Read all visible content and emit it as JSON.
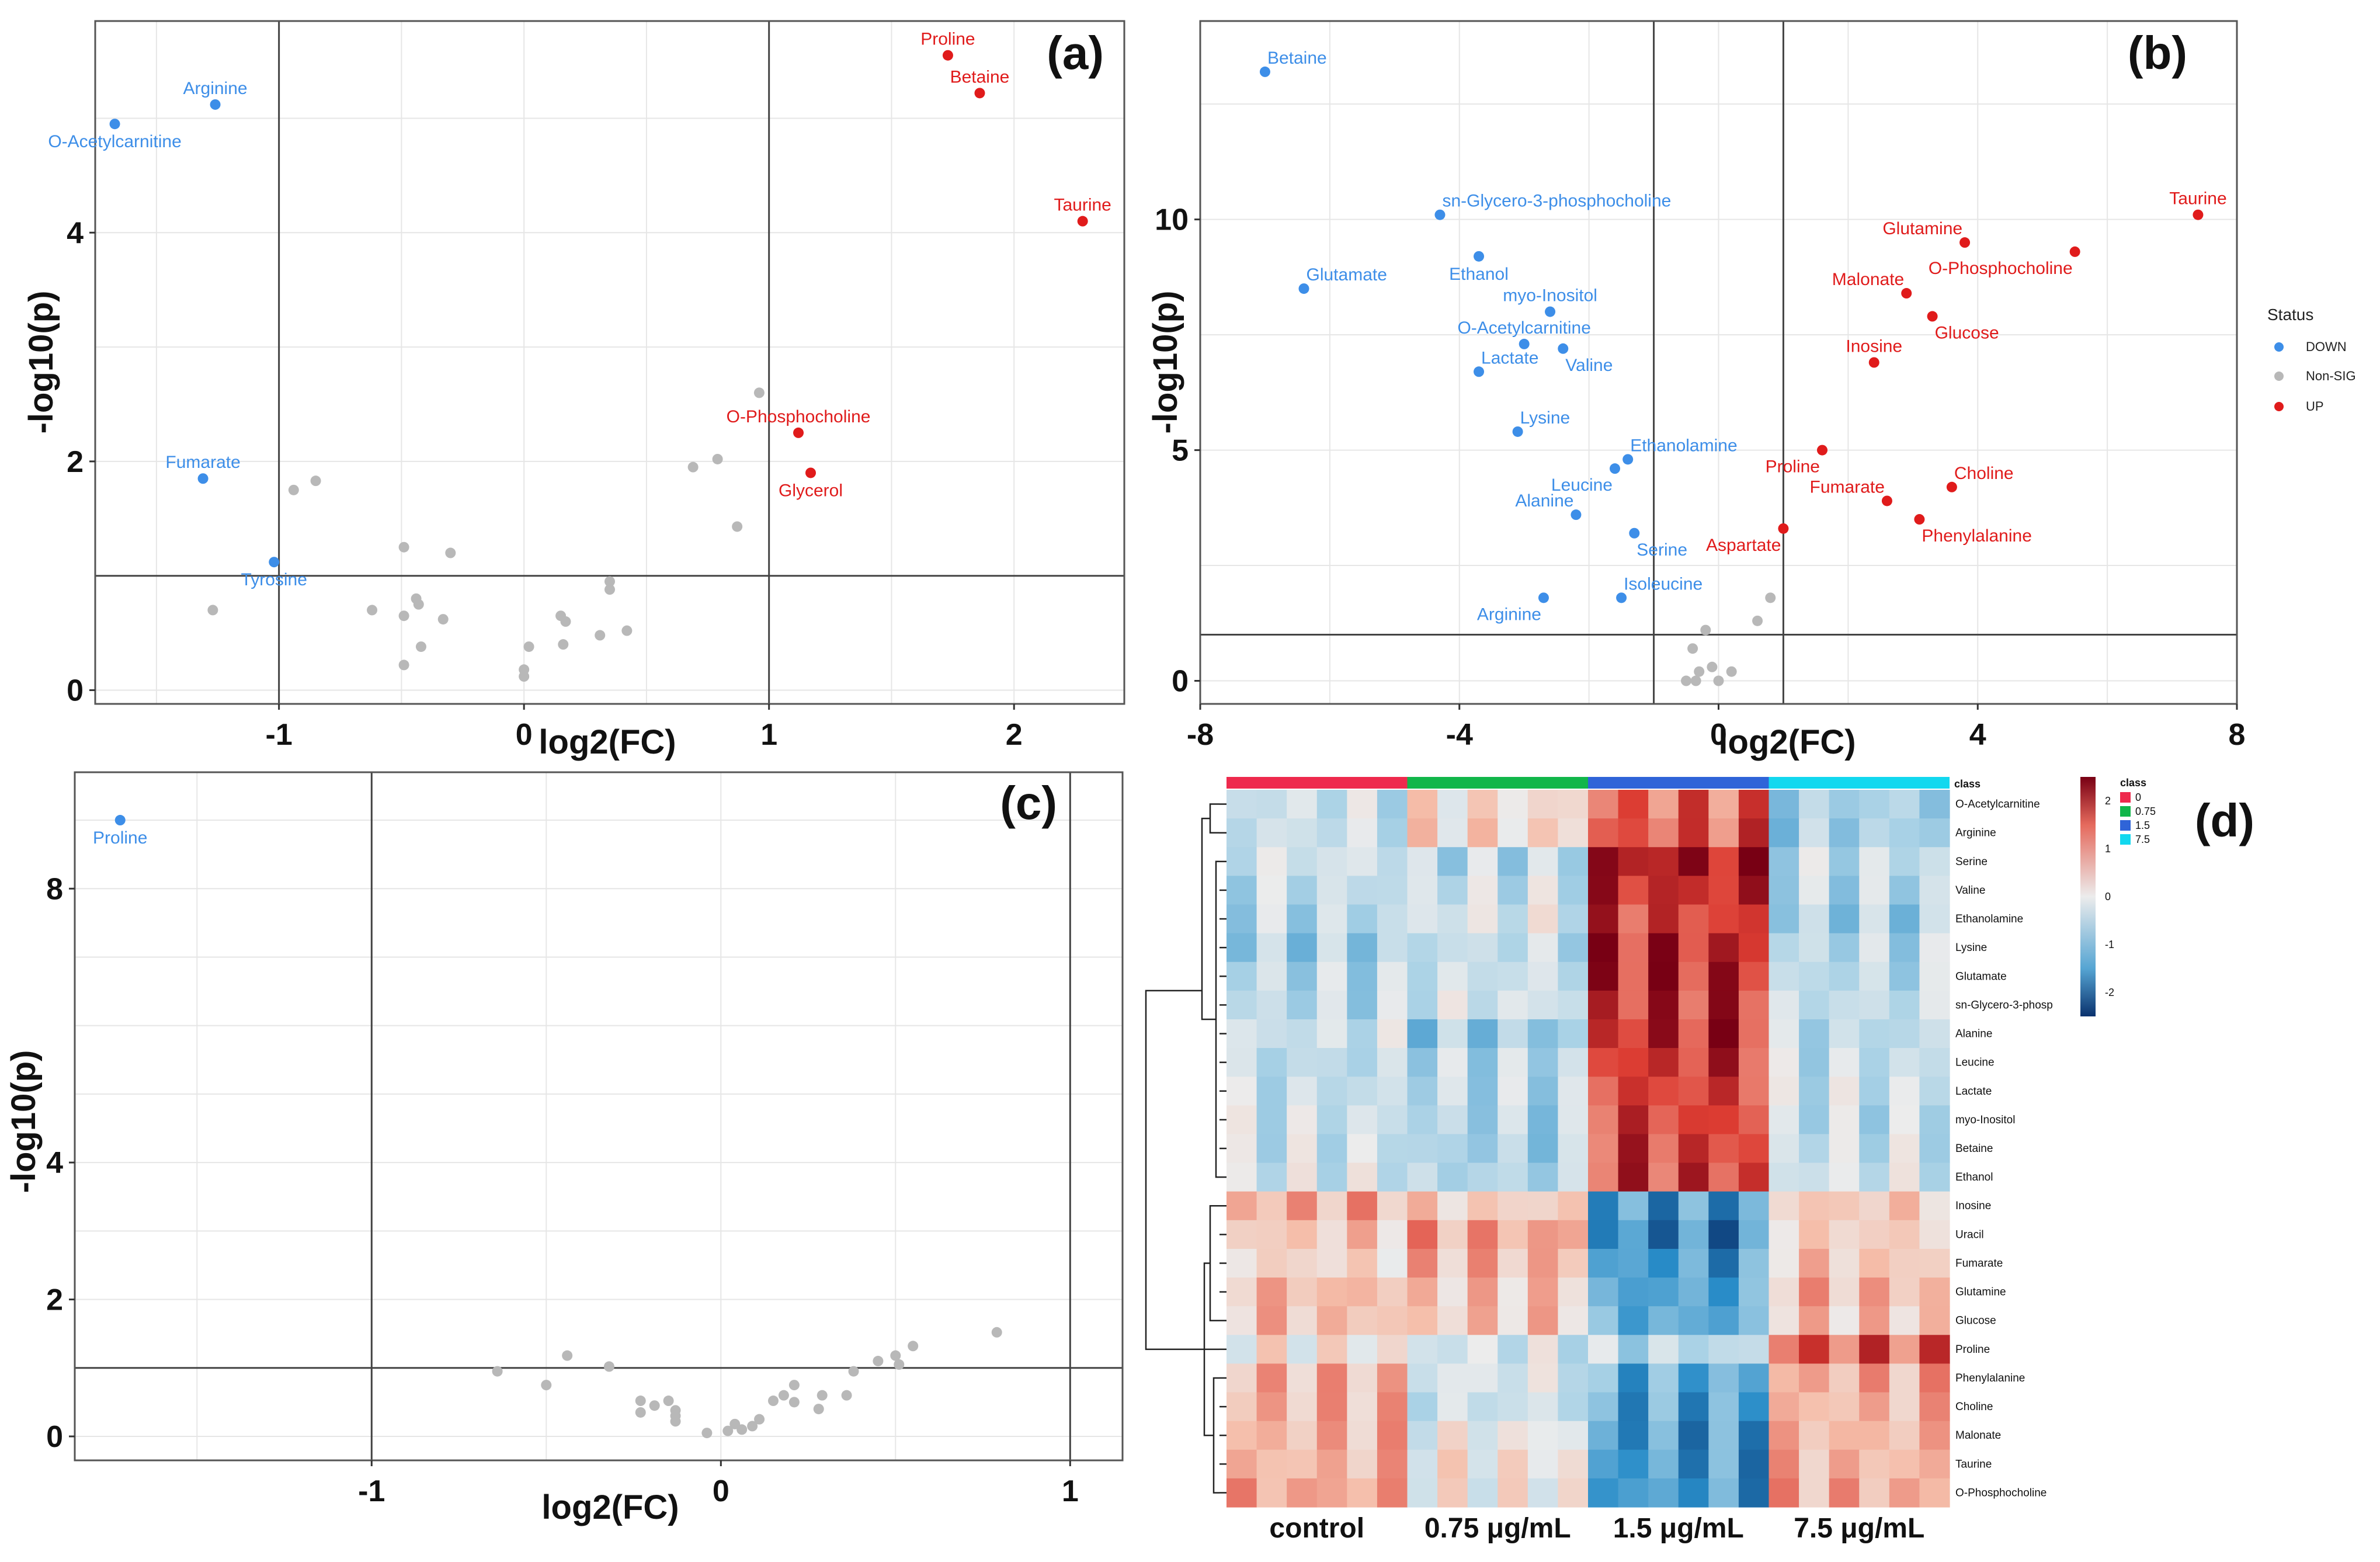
{
  "colors": {
    "down": "#3d8ee8",
    "up": "#e01b1b",
    "nonsig": "#b8b8b8"
  },
  "chart_data": [
    {
      "type": "scatter",
      "panel": "(a)",
      "xlabel": "log2(FC)",
      "ylabel": "-log10(p)",
      "xlim": [
        -1.75,
        2.45
      ],
      "ylim": [
        -0.12,
        5.85
      ],
      "xticks": [
        -1,
        0,
        1,
        2
      ],
      "yticks": [
        0,
        2,
        4
      ],
      "vlines": [
        -1,
        1
      ],
      "hline": 1,
      "points": [
        {
          "x": -1.67,
          "y": 4.95,
          "status": "DOWN",
          "label": "O-Acetylcarnitine",
          "lpos": "below"
        },
        {
          "x": -1.26,
          "y": 5.12,
          "status": "DOWN",
          "label": "Arginine",
          "lpos": "above"
        },
        {
          "x": -1.31,
          "y": 1.85,
          "status": "DOWN",
          "label": "Fumarate",
          "lpos": "above"
        },
        {
          "x": -1.02,
          "y": 1.12,
          "status": "DOWN",
          "label": "Tyrosine",
          "lpos": "below"
        },
        {
          "x": 1.73,
          "y": 5.55,
          "status": "UP",
          "label": "Proline",
          "lpos": "above"
        },
        {
          "x": 1.86,
          "y": 5.22,
          "status": "UP",
          "label": "Betaine",
          "lpos": "above"
        },
        {
          "x": 2.28,
          "y": 4.1,
          "status": "UP",
          "label": "Taurine",
          "lpos": "above"
        },
        {
          "x": 1.12,
          "y": 2.25,
          "status": "UP",
          "label": "O-Phosphocholine",
          "lpos": "above"
        },
        {
          "x": 1.17,
          "y": 1.9,
          "status": "UP",
          "label": "Glycerol",
          "lpos": "below"
        },
        {
          "x": -1.27,
          "y": 0.7,
          "status": "Non-SIG"
        },
        {
          "x": -0.94,
          "y": 1.75,
          "status": "Non-SIG"
        },
        {
          "x": -0.85,
          "y": 1.83,
          "status": "Non-SIG"
        },
        {
          "x": -0.62,
          "y": 0.7,
          "status": "Non-SIG"
        },
        {
          "x": -0.49,
          "y": 1.25,
          "status": "Non-SIG"
        },
        {
          "x": -0.3,
          "y": 1.2,
          "status": "Non-SIG"
        },
        {
          "x": -0.44,
          "y": 0.8,
          "status": "Non-SIG"
        },
        {
          "x": -0.43,
          "y": 0.75,
          "status": "Non-SIG"
        },
        {
          "x": -0.49,
          "y": 0.65,
          "status": "Non-SIG"
        },
        {
          "x": -0.33,
          "y": 0.62,
          "status": "Non-SIG"
        },
        {
          "x": -0.42,
          "y": 0.38,
          "status": "Non-SIG"
        },
        {
          "x": -0.49,
          "y": 0.22,
          "status": "Non-SIG"
        },
        {
          "x": 0.02,
          "y": 0.38,
          "status": "Non-SIG"
        },
        {
          "x": 0.0,
          "y": 0.18,
          "status": "Non-SIG"
        },
        {
          "x": 0.0,
          "y": 0.12,
          "status": "Non-SIG"
        },
        {
          "x": 0.15,
          "y": 0.65,
          "status": "Non-SIG"
        },
        {
          "x": 0.17,
          "y": 0.6,
          "status": "Non-SIG"
        },
        {
          "x": 0.16,
          "y": 0.4,
          "status": "Non-SIG"
        },
        {
          "x": 0.31,
          "y": 0.48,
          "status": "Non-SIG"
        },
        {
          "x": 0.35,
          "y": 0.95,
          "status": "Non-SIG"
        },
        {
          "x": 0.35,
          "y": 0.88,
          "status": "Non-SIG"
        },
        {
          "x": 0.42,
          "y": 0.52,
          "status": "Non-SIG"
        },
        {
          "x": 0.69,
          "y": 1.95,
          "status": "Non-SIG"
        },
        {
          "x": 0.79,
          "y": 2.02,
          "status": "Non-SIG"
        },
        {
          "x": 0.87,
          "y": 1.43,
          "status": "Non-SIG"
        },
        {
          "x": 0.96,
          "y": 2.6,
          "status": "Non-SIG"
        }
      ]
    },
    {
      "type": "scatter",
      "panel": "(b)",
      "xlabel": "log2(FC)",
      "ylabel": "-log10(p)",
      "xlim": [
        -8.0,
        8.0
      ],
      "ylim": [
        -0.5,
        14.3
      ],
      "xticks": [
        -8,
        -4,
        0,
        4,
        8
      ],
      "yticks": [
        0,
        5,
        10
      ],
      "vlines": [
        -1,
        1
      ],
      "hline": 1,
      "points": [
        {
          "x": -7.0,
          "y": 13.2,
          "status": "DOWN",
          "label": "Betaine",
          "lpos": "aboveright"
        },
        {
          "x": -4.3,
          "y": 10.1,
          "status": "DOWN",
          "label": "sn-Glycero-3-phosphocholine",
          "lpos": "aboveright"
        },
        {
          "x": -3.7,
          "y": 9.2,
          "status": "DOWN",
          "label": "Ethanol",
          "lpos": "below"
        },
        {
          "x": -6.4,
          "y": 8.5,
          "status": "DOWN",
          "label": "Glutamate",
          "lpos": "aboveright"
        },
        {
          "x": -2.6,
          "y": 8.0,
          "status": "DOWN",
          "label": "myo-Inositol",
          "lpos": "above"
        },
        {
          "x": -3.0,
          "y": 7.3,
          "status": "DOWN",
          "label": "O-Acetylcarnitine",
          "lpos": "above"
        },
        {
          "x": -2.4,
          "y": 7.2,
          "status": "DOWN",
          "label": "Valine",
          "lpos": "belowright"
        },
        {
          "x": -3.7,
          "y": 6.7,
          "status": "DOWN",
          "label": "Lactate",
          "lpos": "aboveright"
        },
        {
          "x": -3.1,
          "y": 5.4,
          "status": "DOWN",
          "label": "Lysine",
          "lpos": "aboveright"
        },
        {
          "x": -1.4,
          "y": 4.8,
          "status": "DOWN",
          "label": "Ethanolamine",
          "lpos": "aboveright"
        },
        {
          "x": -1.6,
          "y": 4.6,
          "status": "DOWN",
          "label": "Leucine",
          "lpos": "belowleft"
        },
        {
          "x": -2.2,
          "y": 3.6,
          "status": "DOWN",
          "label": "Alanine",
          "lpos": "aboveleft"
        },
        {
          "x": -1.3,
          "y": 3.2,
          "status": "DOWN",
          "label": "Serine",
          "lpos": "belowright"
        },
        {
          "x": -1.5,
          "y": 1.8,
          "status": "DOWN",
          "label": "Isoleucine",
          "lpos": "aboveright"
        },
        {
          "x": -2.7,
          "y": 1.8,
          "status": "DOWN",
          "label": "Arginine",
          "lpos": "belowleft"
        },
        {
          "x": 7.4,
          "y": 10.1,
          "status": "UP",
          "label": "Taurine",
          "lpos": "above"
        },
        {
          "x": 3.8,
          "y": 9.5,
          "status": "UP",
          "label": "Glutamine",
          "lpos": "aboveleft"
        },
        {
          "x": 5.5,
          "y": 9.3,
          "status": "UP",
          "label": "O-Phosphocholine",
          "lpos": "belowleft"
        },
        {
          "x": 2.9,
          "y": 8.4,
          "status": "UP",
          "label": "Malonate",
          "lpos": "aboveleft"
        },
        {
          "x": 3.3,
          "y": 7.9,
          "status": "UP",
          "label": "Glucose",
          "lpos": "belowright"
        },
        {
          "x": 2.4,
          "y": 6.9,
          "status": "UP",
          "label": "Inosine",
          "lpos": "above"
        },
        {
          "x": 1.6,
          "y": 5.0,
          "status": "UP",
          "label": "Proline",
          "lpos": "belowleft"
        },
        {
          "x": 3.6,
          "y": 4.2,
          "status": "UP",
          "label": "Choline",
          "lpos": "aboveright"
        },
        {
          "x": 2.6,
          "y": 3.9,
          "status": "UP",
          "label": "Fumarate",
          "lpos": "aboveleft"
        },
        {
          "x": 3.1,
          "y": 3.5,
          "status": "UP",
          "label": "Phenylalanine",
          "lpos": "belowright"
        },
        {
          "x": 1.0,
          "y": 3.3,
          "status": "UP",
          "label": "Aspartate",
          "lpos": "belowleft"
        },
        {
          "x": 0.8,
          "y": 1.8,
          "status": "Non-SIG"
        },
        {
          "x": 0.6,
          "y": 1.3,
          "status": "Non-SIG"
        },
        {
          "x": -0.4,
          "y": 0.7,
          "status": "Non-SIG"
        },
        {
          "x": -0.3,
          "y": 0.2,
          "status": "Non-SIG"
        },
        {
          "x": -0.2,
          "y": 1.1,
          "status": "Non-SIG"
        },
        {
          "x": -0.1,
          "y": 0.3,
          "status": "Non-SIG"
        },
        {
          "x": -0.5,
          "y": 0.0,
          "status": "Non-SIG"
        },
        {
          "x": -0.35,
          "y": 0.0,
          "status": "Non-SIG"
        },
        {
          "x": 0.0,
          "y": 0.0,
          "status": "Non-SIG"
        },
        {
          "x": 0.2,
          "y": 0.2,
          "status": "Non-SIG"
        }
      ]
    },
    {
      "type": "scatter",
      "panel": "(c)",
      "xlabel": "log2(FC)",
      "ylabel": "-log10(p)",
      "xlim": [
        -1.85,
        1.15
      ],
      "ylim": [
        -0.35,
        9.7
      ],
      "xticks": [
        -1,
        0,
        1
      ],
      "yticks": [
        0,
        2,
        4,
        8
      ],
      "vlines": [
        -1,
        1
      ],
      "hline": 1,
      "points": [
        {
          "x": -1.72,
          "y": 9.0,
          "status": "DOWN",
          "label": "Proline",
          "lpos": "below"
        },
        {
          "x": -0.64,
          "y": 0.95,
          "status": "Non-SIG"
        },
        {
          "x": -0.5,
          "y": 0.75,
          "status": "Non-SIG"
        },
        {
          "x": -0.44,
          "y": 1.18,
          "status": "Non-SIG"
        },
        {
          "x": -0.32,
          "y": 1.02,
          "status": "Non-SIG"
        },
        {
          "x": -0.23,
          "y": 0.52,
          "status": "Non-SIG"
        },
        {
          "x": -0.23,
          "y": 0.35,
          "status": "Non-SIG"
        },
        {
          "x": -0.19,
          "y": 0.45,
          "status": "Non-SIG"
        },
        {
          "x": -0.15,
          "y": 0.52,
          "status": "Non-SIG"
        },
        {
          "x": -0.13,
          "y": 0.38,
          "status": "Non-SIG"
        },
        {
          "x": -0.13,
          "y": 0.3,
          "status": "Non-SIG"
        },
        {
          "x": -0.13,
          "y": 0.22,
          "status": "Non-SIG"
        },
        {
          "x": -0.04,
          "y": 0.05,
          "status": "Non-SIG"
        },
        {
          "x": 0.02,
          "y": 0.08,
          "status": "Non-SIG"
        },
        {
          "x": 0.06,
          "y": 0.1,
          "status": "Non-SIG"
        },
        {
          "x": 0.04,
          "y": 0.18,
          "status": "Non-SIG"
        },
        {
          "x": 0.09,
          "y": 0.15,
          "status": "Non-SIG"
        },
        {
          "x": 0.11,
          "y": 0.25,
          "status": "Non-SIG"
        },
        {
          "x": 0.15,
          "y": 0.52,
          "status": "Non-SIG"
        },
        {
          "x": 0.18,
          "y": 0.6,
          "status": "Non-SIG"
        },
        {
          "x": 0.21,
          "y": 0.5,
          "status": "Non-SIG"
        },
        {
          "x": 0.21,
          "y": 0.75,
          "status": "Non-SIG"
        },
        {
          "x": 0.28,
          "y": 0.4,
          "status": "Non-SIG"
        },
        {
          "x": 0.29,
          "y": 0.6,
          "status": "Non-SIG"
        },
        {
          "x": 0.36,
          "y": 0.6,
          "status": "Non-SIG"
        },
        {
          "x": 0.38,
          "y": 0.95,
          "status": "Non-SIG"
        },
        {
          "x": 0.45,
          "y": 1.1,
          "status": "Non-SIG"
        },
        {
          "x": 0.5,
          "y": 1.18,
          "status": "Non-SIG"
        },
        {
          "x": 0.51,
          "y": 1.05,
          "status": "Non-SIG"
        },
        {
          "x": 0.55,
          "y": 1.32,
          "status": "Non-SIG"
        },
        {
          "x": 0.79,
          "y": 1.52,
          "status": "Non-SIG"
        }
      ]
    },
    {
      "type": "heatmap",
      "panel": "(d)",
      "rows": [
        "O-Acetylcarnitine",
        "Arginine",
        "Serine",
        "Valine",
        "Ethanolamine",
        "Lysine",
        "Glutamate",
        "sn-Glycero-3-phosp",
        "Alanine",
        "Leucine",
        "Lactate",
        "myo-Inositol",
        "Betaine",
        "Ethanol",
        "Inosine",
        "Uracil",
        "Fumarate",
        "Glutamine",
        "Glucose",
        "Proline",
        "Phenylalanine",
        "Choline",
        "Malonate",
        "Taurine",
        "O-Phosphocholine"
      ],
      "groups": [
        "control",
        "0.75 μg/mL",
        "1.5 μg/mL",
        "7.5 μg/mL"
      ],
      "group_colors": [
        "#ee2a4d",
        "#11b64a",
        "#2f64d8",
        "#12d8ef"
      ],
      "class_title": "class",
      "class_legend": [
        "0",
        "0.75",
        "1.5",
        "7.5"
      ],
      "color_scale": {
        "min": -2.5,
        "max": 2.5,
        "ticks": [
          2,
          1,
          0,
          -1,
          -2
        ]
      },
      "group_means": [
        [
          -0.4,
          0.3,
          1.5,
          -0.8
        ],
        [
          -0.4,
          0.4,
          1.6,
          -0.8
        ],
        [
          -0.3,
          -0.6,
          2.2,
          -0.5
        ],
        [
          -0.5,
          -0.4,
          2.0,
          -0.6
        ],
        [
          -0.6,
          -0.2,
          1.8,
          -0.8
        ],
        [
          -0.8,
          -0.5,
          2.0,
          -0.6
        ],
        [
          -0.6,
          -0.4,
          2.0,
          -0.6
        ],
        [
          -0.6,
          -0.3,
          1.9,
          -0.5
        ],
        [
          -0.4,
          -0.9,
          2.0,
          -0.6
        ],
        [
          -0.6,
          -0.6,
          1.9,
          -0.5
        ],
        [
          -0.5,
          -0.6,
          1.8,
          -0.4
        ],
        [
          -0.4,
          -0.7,
          1.8,
          -0.5
        ],
        [
          -0.4,
          -0.8,
          1.8,
          -0.4
        ],
        [
          -0.3,
          -0.7,
          1.8,
          -0.3
        ],
        [
          0.9,
          0.5,
          -1.6,
          0.6
        ],
        [
          0.6,
          1.0,
          -1.8,
          0.5
        ],
        [
          0.4,
          0.8,
          -1.6,
          0.6
        ],
        [
          0.8,
          0.6,
          -1.5,
          0.8
        ],
        [
          0.7,
          0.6,
          -1.4,
          0.6
        ],
        [
          0.2,
          -0.3,
          -0.6,
          1.6
        ],
        [
          0.8,
          -0.2,
          -1.4,
          0.9
        ],
        [
          0.8,
          -0.4,
          -1.5,
          0.8
        ],
        [
          0.8,
          0.0,
          -1.6,
          0.8
        ],
        [
          0.8,
          0.2,
          -1.6,
          0.8
        ],
        [
          1.0,
          0.1,
          -1.6,
          0.9
        ]
      ]
    }
  ],
  "legend": {
    "title": "Status",
    "items": [
      {
        "label": "DOWN"
      },
      {
        "label": "Non-SIG"
      },
      {
        "label": "UP"
      }
    ]
  }
}
